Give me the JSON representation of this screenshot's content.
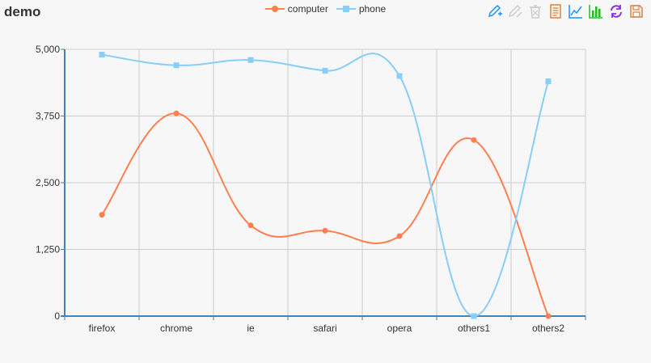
{
  "title": "demo",
  "legend": {
    "computer": "computer",
    "phone": "phone"
  },
  "toolbox": {
    "icons": [
      "mark-icon",
      "mark-undo-icon",
      "mark-clear-icon",
      "data-view-icon",
      "line-chart-icon",
      "bar-chart-icon",
      "restore-icon",
      "save-image-icon"
    ]
  },
  "colors": {
    "computer": "#ff7f50",
    "phone": "#87cefa",
    "axis": "#4682b4",
    "grid": "#cccccc"
  },
  "chart_data": {
    "type": "line",
    "title": "demo",
    "categories": [
      "firefox",
      "chrome",
      "ie",
      "safari",
      "opera",
      "others1",
      "others2"
    ],
    "series": [
      {
        "name": "computer",
        "values": [
          1900,
          3800,
          1700,
          1600,
          1500,
          3300,
          0
        ]
      },
      {
        "name": "phone",
        "values": [
          4900,
          4700,
          4800,
          4600,
          4500,
          0,
          4400
        ]
      }
    ],
    "ylim": [
      0,
      5000
    ],
    "yticks": [
      "0",
      "1,250",
      "2,500",
      "3,750",
      "5,000"
    ],
    "ytick_values": [
      0,
      1250,
      2500,
      3750,
      5000
    ],
    "smooth": true,
    "grid": true,
    "legend_position": "top-center"
  }
}
